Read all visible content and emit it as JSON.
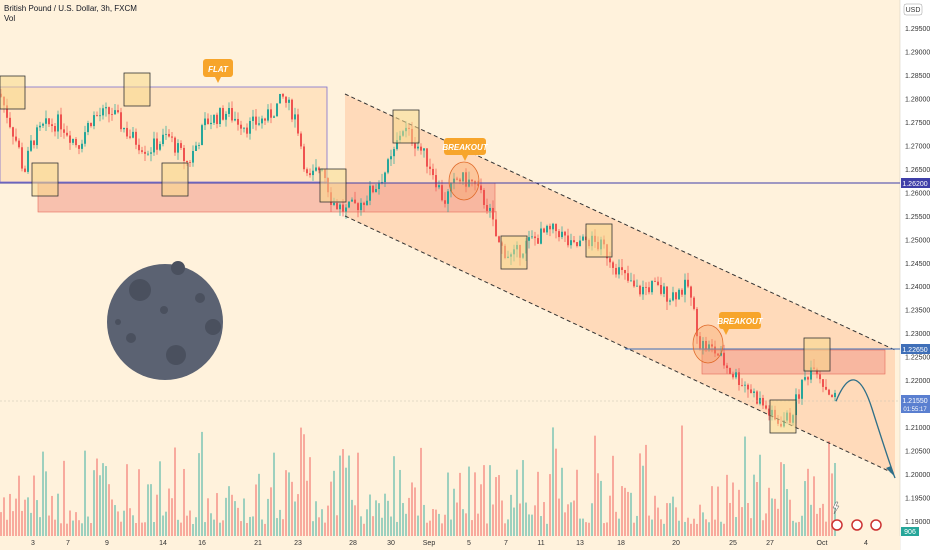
{
  "header": {
    "symbol_line": "British Pound / U.S. Dollar, 3h, FXCM",
    "indicator": "Vol"
  },
  "currency_label": "USD",
  "price_axis": [
    1.295,
    1.29,
    1.285,
    1.28,
    1.275,
    1.27,
    1.265,
    1.26,
    1.255,
    1.25,
    1.245,
    1.24,
    1.235,
    1.23,
    1.225,
    1.22,
    1.21,
    1.205,
    1.2,
    1.195,
    1.19
  ],
  "price_tags": {
    "resistance": "1.26200",
    "support": "1.22650",
    "last": "1.21550",
    "countdown": "01:55:17",
    "volume": "906"
  },
  "annotations": {
    "flat": "FLAT",
    "breakout1": "BREAKOUT",
    "breakout2": "BREAKOUT"
  },
  "time_axis": [
    "3",
    "7",
    "9",
    "14",
    "16",
    "21",
    "23",
    "28",
    "30",
    "Sep",
    "5",
    "7",
    "11",
    "13",
    "18",
    "20",
    "25",
    "27",
    "Oct",
    "4"
  ],
  "colors": {
    "bull": "#26a69a",
    "bear": "#ef5350",
    "level_line": "#3f3fa8",
    "zone": "#f4a090",
    "channel": "#ffb07a",
    "callout": "#f7a52b",
    "moon": "#5b6272"
  },
  "chart_data": {
    "type": "candlestick",
    "title": "British Pound / U.S. Dollar, 3h, FXCM",
    "interval": "3h",
    "y_axis": "price (USD)",
    "ylim": [
      1.19,
      1.299
    ],
    "levels": [
      1.262,
      1.2265
    ],
    "last_price": 1.2155,
    "price_path": [
      {
        "t": 0,
        "p": 1.281
      },
      {
        "t": 8,
        "p": 1.276
      },
      {
        "t": 18,
        "p": 1.27
      },
      {
        "t": 24,
        "p": 1.264
      },
      {
        "t": 32,
        "p": 1.271
      },
      {
        "t": 44,
        "p": 1.274
      },
      {
        "t": 60,
        "p": 1.275
      },
      {
        "t": 78,
        "p": 1.27
      },
      {
        "t": 92,
        "p": 1.276
      },
      {
        "t": 112,
        "p": 1.277
      },
      {
        "t": 130,
        "p": 1.272
      },
      {
        "t": 148,
        "p": 1.269
      },
      {
        "t": 168,
        "p": 1.272
      },
      {
        "t": 188,
        "p": 1.266
      },
      {
        "t": 206,
        "p": 1.275
      },
      {
        "t": 226,
        "p": 1.277
      },
      {
        "t": 248,
        "p": 1.274
      },
      {
        "t": 268,
        "p": 1.276
      },
      {
        "t": 283,
        "p": 1.28
      },
      {
        "t": 296,
        "p": 1.276
      },
      {
        "t": 308,
        "p": 1.262
      },
      {
        "t": 322,
        "p": 1.266
      },
      {
        "t": 332,
        "p": 1.258
      },
      {
        "t": 346,
        "p": 1.256
      },
      {
        "t": 362,
        "p": 1.258
      },
      {
        "t": 378,
        "p": 1.262
      },
      {
        "t": 392,
        "p": 1.267
      },
      {
        "t": 402,
        "p": 1.274
      },
      {
        "t": 418,
        "p": 1.27
      },
      {
        "t": 432,
        "p": 1.265
      },
      {
        "t": 444,
        "p": 1.258
      },
      {
        "t": 458,
        "p": 1.263
      },
      {
        "t": 472,
        "p": 1.262
      },
      {
        "t": 488,
        "p": 1.257
      },
      {
        "t": 498,
        "p": 1.249
      },
      {
        "t": 512,
        "p": 1.246
      },
      {
        "t": 526,
        "p": 1.249
      },
      {
        "t": 542,
        "p": 1.251
      },
      {
        "t": 558,
        "p": 1.252
      },
      {
        "t": 572,
        "p": 1.248
      },
      {
        "t": 588,
        "p": 1.25
      },
      {
        "t": 604,
        "p": 1.248
      },
      {
        "t": 620,
        "p": 1.243
      },
      {
        "t": 636,
        "p": 1.239
      },
      {
        "t": 652,
        "p": 1.24
      },
      {
        "t": 670,
        "p": 1.238
      },
      {
        "t": 688,
        "p": 1.24
      },
      {
        "t": 700,
        "p": 1.228
      },
      {
        "t": 716,
        "p": 1.226
      },
      {
        "t": 730,
        "p": 1.222
      },
      {
        "t": 746,
        "p": 1.219
      },
      {
        "t": 762,
        "p": 1.215
      },
      {
        "t": 776,
        "p": 1.211
      },
      {
        "t": 790,
        "p": 1.212
      },
      {
        "t": 802,
        "p": 1.219
      },
      {
        "t": 814,
        "p": 1.224
      },
      {
        "t": 824,
        "p": 1.219
      },
      {
        "t": 836,
        "p": 1.216
      }
    ],
    "projection": [
      {
        "t": 836,
        "p": 1.2155
      },
      {
        "t": 855,
        "p": 1.22
      },
      {
        "t": 872,
        "p": 1.215
      },
      {
        "t": 895,
        "p": 1.2
      }
    ]
  }
}
